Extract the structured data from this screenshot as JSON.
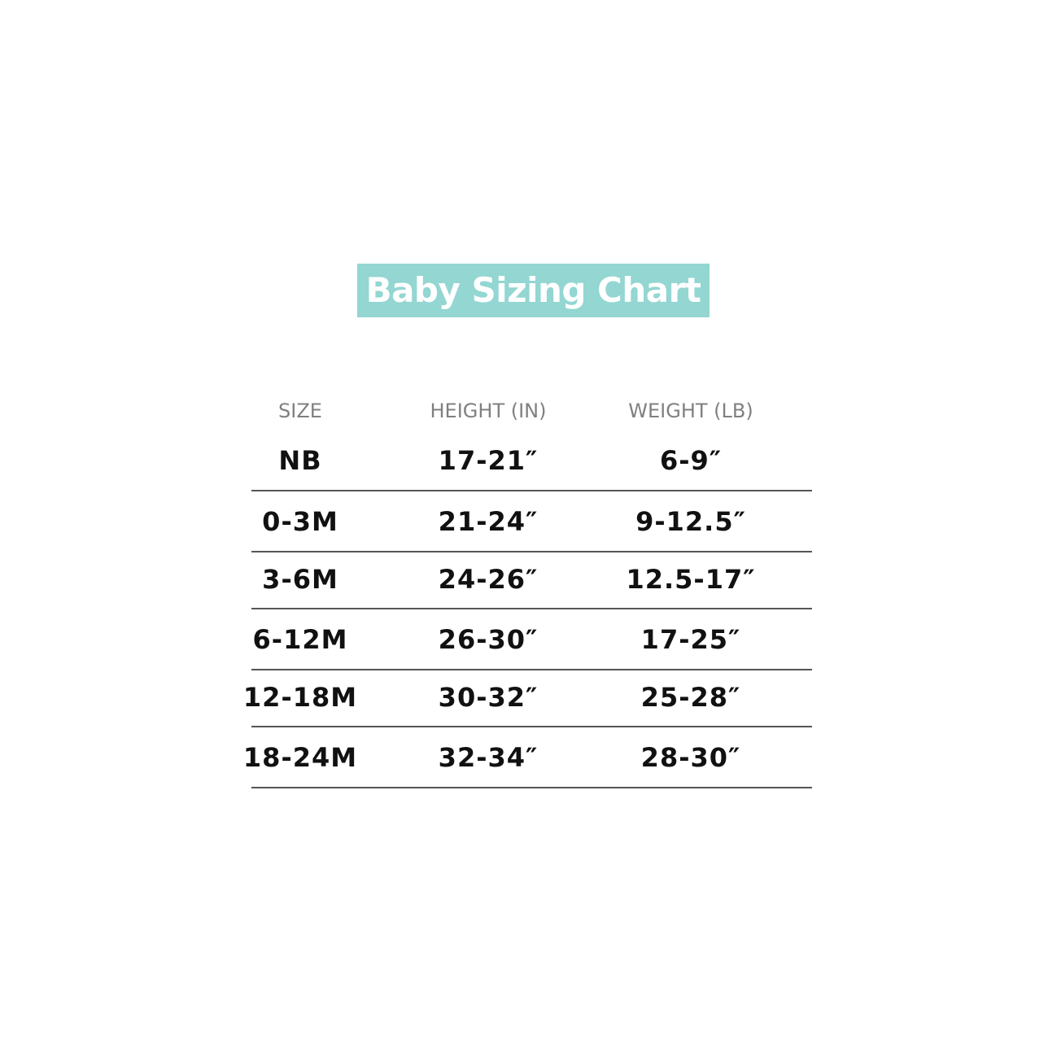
{
  "title": "Baby Sizing Chart",
  "accent_color": "#93d6d2",
  "headers": [
    "SIZE",
    "HEIGHT (IN)",
    "WEIGHT (LB)"
  ],
  "rows": [
    [
      "NB",
      "17-21″",
      "6-9″"
    ],
    [
      "0-3M",
      "21-24″",
      "9-12.5″"
    ],
    [
      "3-6M",
      "24-26″",
      "12.5-17″"
    ],
    [
      "6-12M",
      "26-30″",
      "17-25″"
    ],
    [
      "12-18M",
      "30-32″",
      "25-28″"
    ],
    [
      "18-24M",
      "32-34″",
      "28-30″"
    ]
  ]
}
